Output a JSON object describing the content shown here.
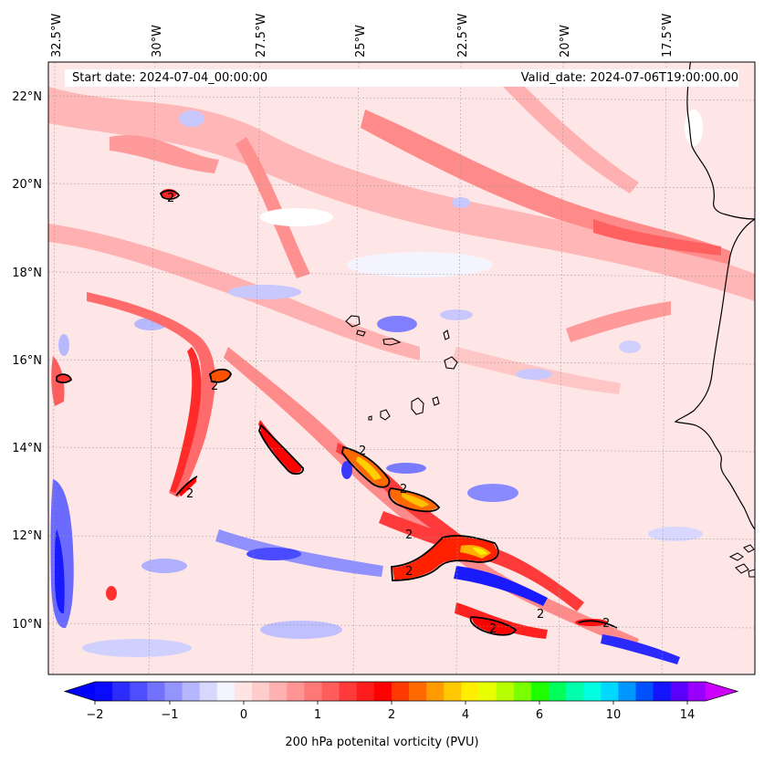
{
  "header": {
    "start_date": "Start date: 2024-07-04_00:00:00",
    "valid_date": "Valid_date: 2024-07-06T19:00:00.00"
  },
  "axes": {
    "lon_labels": [
      "32.5°W",
      "30°W",
      "27.5°W",
      "25°W",
      "22.5°W",
      "20°W",
      "17.5°W"
    ],
    "lat_labels": [
      "22°N",
      "20°N",
      "18°N",
      "16°N",
      "14°N",
      "12°N",
      "10°N"
    ]
  },
  "contour_label": "2",
  "colorbar": {
    "label": "200 hPa potenital vorticity (PVU)",
    "tick_labels": [
      "−2",
      "−1",
      "0",
      "1",
      "2",
      "4",
      "6",
      "10",
      "14"
    ],
    "colors": [
      "#0a0aff",
      "#2c2cff",
      "#4e4eff",
      "#7272ff",
      "#9494ff",
      "#b6b6ff",
      "#d8d8ff",
      "#f4f4ff",
      "#ffe4e4",
      "#ffcccc",
      "#ffb0b0",
      "#ff9494",
      "#ff7878",
      "#ff5c5c",
      "#ff3a3a",
      "#ff1c1c",
      "#ff0000",
      "#ff3a00",
      "#ff6a00",
      "#ff9a00",
      "#ffc800",
      "#ffee00",
      "#e8ff00",
      "#b8ff00",
      "#7aff00",
      "#20ff00",
      "#00ff5a",
      "#00ffaa",
      "#00ffe0",
      "#00d8ff",
      "#0096ff",
      "#0050ff",
      "#1414ff",
      "#5a00ff",
      "#9a00ff"
    ],
    "under_color": "#0000ff",
    "over_color": "#cc00ff"
  }
}
